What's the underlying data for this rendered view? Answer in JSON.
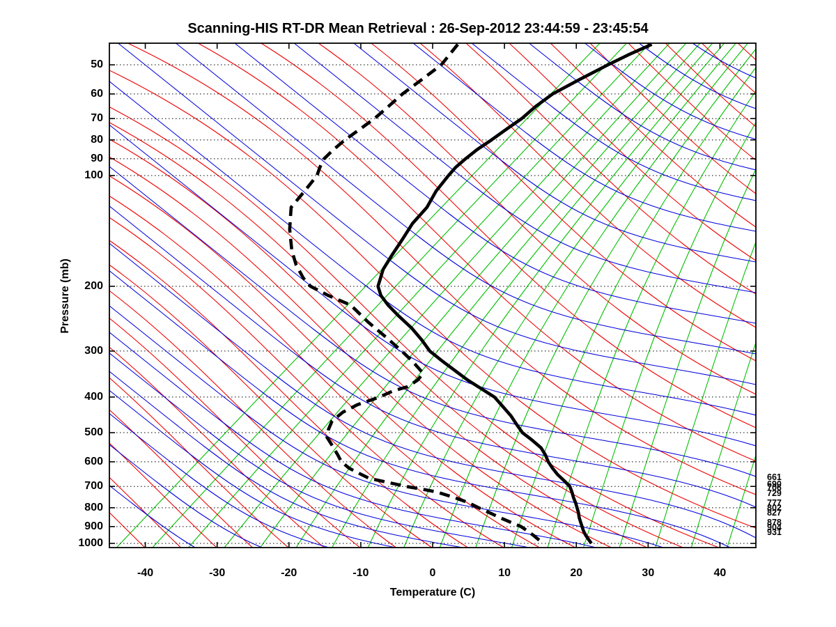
{
  "title": "Scanning-HIS RT-DR Mean Retrieval : 26-Sep-2012 23:44:59 - 23:45:54",
  "x_axis": {
    "label": "Temperature (C)",
    "tick_values": [
      -40,
      -30,
      -20,
      -10,
      0,
      10,
      20,
      30,
      40
    ],
    "range": [
      -45,
      45
    ]
  },
  "y_axis": {
    "label": "Pressure (mb)",
    "scale": "log",
    "tick_values": [
      50,
      60,
      70,
      80,
      90,
      100,
      200,
      300,
      400,
      500,
      600,
      700,
      800,
      900,
      1000
    ],
    "range": [
      44,
      1030
    ]
  },
  "right_pressure_labels": [
    "661",
    "690",
    "706",
    "729",
    "777",
    "802",
    "827",
    "878",
    "904",
    "931"
  ],
  "colors": {
    "isotherm_green": "#00c000",
    "dry_adiabat_red": "#ee0000",
    "moist_adiabat_blue": "#0000dd",
    "grid_dotted": "#000000",
    "profile_black": "#000000",
    "background": "#ffffff"
  },
  "chart_data": {
    "type": "line",
    "variant": "skew-t-log-p sounding",
    "title": "Scanning-HIS RT-DR Mean Retrieval : 26-Sep-2012 23:44:59 - 23:45:54",
    "xlabel": "Temperature (C)",
    "ylabel": "Pressure (mb)",
    "x_note": "x values are positions read on the skewed temperature axis (C); pressure in mb (log scale)",
    "grid": "dotted horizontal isobars at labeled pressures",
    "series": [
      {
        "name": "temperature_retrieval",
        "style": "solid",
        "color": "#000000",
        "points": [
          [
            44,
            30.5
          ],
          [
            47,
            27.2
          ],
          [
            50,
            24.4
          ],
          [
            55,
            20.3
          ],
          [
            60,
            16.7
          ],
          [
            65,
            14.3
          ],
          [
            70,
            12.4
          ],
          [
            75,
            10.2
          ],
          [
            80,
            8.2
          ],
          [
            85,
            6.2
          ],
          [
            90,
            4.6
          ],
          [
            95,
            3.2
          ],
          [
            100,
            2.2
          ],
          [
            110,
            0.5
          ],
          [
            122,
            -0.8
          ],
          [
            135,
            -2.8
          ],
          [
            150,
            -4.3
          ],
          [
            165,
            -5.7
          ],
          [
            180,
            -6.9
          ],
          [
            200,
            -7.6
          ],
          [
            212,
            -7.2
          ],
          [
            225,
            -6.2
          ],
          [
            240,
            -4.8
          ],
          [
            260,
            -2.9
          ],
          [
            280,
            -1.5
          ],
          [
            300,
            -0.4
          ],
          [
            320,
            1.4
          ],
          [
            340,
            3.2
          ],
          [
            360,
            4.9
          ],
          [
            380,
            6.8
          ],
          [
            400,
            8.6
          ],
          [
            425,
            9.8
          ],
          [
            450,
            10.9
          ],
          [
            475,
            11.7
          ],
          [
            500,
            12.5
          ],
          [
            525,
            13.9
          ],
          [
            550,
            15.1
          ],
          [
            575,
            15.7
          ],
          [
            600,
            16.1
          ],
          [
            625,
            16.7
          ],
          [
            650,
            17.4
          ],
          [
            675,
            18.3
          ],
          [
            700,
            19.1
          ],
          [
            725,
            19.4
          ],
          [
            750,
            19.6
          ],
          [
            775,
            19.9
          ],
          [
            800,
            20.1
          ],
          [
            825,
            20.3
          ],
          [
            850,
            20.4
          ],
          [
            875,
            20.6
          ],
          [
            900,
            20.8
          ],
          [
            925,
            21.0
          ],
          [
            950,
            21.3
          ],
          [
            975,
            21.7
          ],
          [
            1000,
            22.1
          ]
        ]
      },
      {
        "name": "dew_point_retrieval",
        "style": "dashed",
        "color": "#000000",
        "points": [
          [
            44,
            3.5
          ],
          [
            50,
            1.2
          ],
          [
            55,
            -1.6
          ],
          [
            60,
            -4.2
          ],
          [
            65,
            -6.2
          ],
          [
            70,
            -8.1
          ],
          [
            75,
            -10.2
          ],
          [
            80,
            -12.2
          ],
          [
            85,
            -13.8
          ],
          [
            90,
            -15.1
          ],
          [
            95,
            -15.7
          ],
          [
            100,
            -16.1
          ],
          [
            110,
            -17.8
          ],
          [
            122,
            -19.7
          ],
          [
            140,
            -19.9
          ],
          [
            160,
            -19.6
          ],
          [
            175,
            -19.0
          ],
          [
            190,
            -18.0
          ],
          [
            200,
            -17.0
          ],
          [
            212,
            -14.5
          ],
          [
            225,
            -11.4
          ],
          [
            250,
            -9.0
          ],
          [
            275,
            -6.5
          ],
          [
            300,
            -4.3
          ],
          [
            320,
            -2.8
          ],
          [
            345,
            -1.3
          ],
          [
            360,
            -2.1
          ],
          [
            375,
            -3.5
          ],
          [
            385,
            -5.5
          ],
          [
            400,
            -7.4
          ],
          [
            420,
            -10.5
          ],
          [
            440,
            -12.5
          ],
          [
            465,
            -14.0
          ],
          [
            490,
            -14.5
          ],
          [
            515,
            -14.7
          ],
          [
            545,
            -13.9
          ],
          [
            575,
            -13.2
          ],
          [
            600,
            -12.7
          ],
          [
            625,
            -11.6
          ],
          [
            650,
            -9.9
          ],
          [
            666,
            -8.8
          ],
          [
            680,
            -6.6
          ],
          [
            700,
            -3.7
          ],
          [
            712,
            -1.5
          ],
          [
            725,
            0.6
          ],
          [
            750,
            3.0
          ],
          [
            775,
            5.0
          ],
          [
            800,
            6.4
          ],
          [
            825,
            7.9
          ],
          [
            850,
            9.3
          ],
          [
            875,
            10.8
          ],
          [
            900,
            12.3
          ],
          [
            925,
            13.2
          ],
          [
            950,
            14.0
          ],
          [
            975,
            14.7
          ],
          [
            1000,
            15.4
          ]
        ]
      }
    ],
    "background_line_families": [
      {
        "name": "isotherms",
        "color": "#00c000",
        "spacing_C": 5
      },
      {
        "name": "dry_adiabats",
        "color": "#ee0000"
      },
      {
        "name": "moist_adiabats",
        "color": "#0000dd"
      }
    ]
  }
}
